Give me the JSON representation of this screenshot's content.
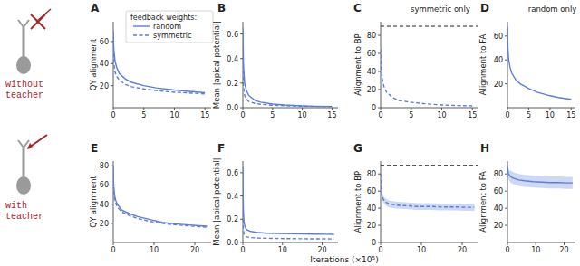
{
  "rows": [
    [
      "without",
      "teacher"
    ],
    [
      "with",
      "teacher"
    ]
  ],
  "xlabel": "Iterations (×10⁵)",
  "chart_data": [
    {
      "type": "line",
      "panel": "A",
      "ylabel": "QY alignment",
      "legend": "upper right",
      "legend_title": "feedback weights:",
      "x": [
        0,
        0.1,
        0.3,
        0.6,
        1,
        2,
        3,
        5,
        7,
        10,
        12,
        15
      ],
      "xlim": [
        0,
        16
      ],
      "xticks": [
        0,
        5,
        10,
        15
      ],
      "ylim": [
        0,
        78
      ],
      "yticks": [
        20,
        40,
        60
      ],
      "series": [
        {
          "name": "random",
          "color": "#5b7ddb",
          "line_style": "solid",
          "values": [
            70,
            52,
            42,
            36,
            31,
            26,
            23,
            20,
            18,
            16,
            15,
            13.5
          ]
        },
        {
          "name": "symmetric",
          "color": "#5b7ddb",
          "line_style": "dashed",
          "values": [
            60,
            40,
            32,
            28,
            25,
            21,
            19,
            17,
            15.5,
            14,
            13.5,
            12.5
          ]
        }
      ]
    },
    {
      "type": "line",
      "panel": "B",
      "ylabel": "Mean |apical potential|",
      "x": [
        0,
        0.1,
        0.3,
        0.6,
        1,
        2,
        3,
        5,
        7,
        10,
        12,
        15
      ],
      "xlim": [
        0,
        16
      ],
      "xticks": [
        0,
        5,
        10,
        15
      ],
      "ylim": [
        0,
        0.7
      ],
      "yticks": [
        {
          "value": 0,
          "label": "0.0"
        },
        {
          "value": 0.2,
          "label": "0.2"
        },
        {
          "value": 0.4,
          "label": "0.4"
        },
        {
          "value": 0.6,
          "label": "0.6"
        }
      ],
      "series": [
        {
          "name": "random",
          "color": "#5b7ddb",
          "line_style": "solid",
          "values": [
            0.65,
            0.35,
            0.2,
            0.14,
            0.1,
            0.06,
            0.045,
            0.03,
            0.022,
            0.015,
            0.012,
            0.01
          ]
        },
        {
          "name": "symmetric",
          "color": "#5b7ddb",
          "line_style": "dashed",
          "values": [
            0.35,
            0.18,
            0.1,
            0.07,
            0.05,
            0.035,
            0.028,
            0.02,
            0.016,
            0.012,
            0.01,
            0.008
          ]
        }
      ]
    },
    {
      "type": "line",
      "panel": "C",
      "title": "symmetric only",
      "ylabel": "Alignment to BP",
      "x": [
        0,
        0.1,
        0.3,
        0.6,
        1,
        2,
        3,
        5,
        7,
        10,
        12,
        15
      ],
      "xlim": [
        0,
        16
      ],
      "xticks": [
        0,
        5,
        10,
        15
      ],
      "ylim": [
        0,
        95
      ],
      "yticks": [
        0,
        20,
        40,
        60,
        80
      ],
      "reference_line": 90,
      "series": [
        {
          "name": "symmetric",
          "color": "#5b7ddb",
          "line_style": "dashed",
          "values": [
            65,
            45,
            30,
            22,
            17,
            11,
            8,
            6,
            4.5,
            3,
            2.5,
            2
          ]
        }
      ]
    },
    {
      "type": "line",
      "panel": "D",
      "title": "random only",
      "ylabel": "Alignment to FA",
      "x": [
        0,
        0.1,
        0.3,
        0.6,
        1,
        2,
        3,
        5,
        7,
        10,
        12,
        15
      ],
      "xlim": [
        0,
        16
      ],
      "xticks": [
        0,
        5,
        10,
        15
      ],
      "ylim": [
        0,
        72
      ],
      "yticks": [
        20,
        40,
        60
      ],
      "series": [
        {
          "name": "random",
          "color": "#5b7ddb",
          "line_style": "solid",
          "values": [
            68,
            50,
            40,
            34,
            29,
            23,
            20,
            16,
            13,
            10,
            8.5,
            7
          ]
        }
      ]
    },
    {
      "type": "line",
      "panel": "E",
      "ylabel": "QY alignment",
      "x": [
        0,
        0.1,
        0.3,
        0.6,
        1,
        2,
        4,
        6,
        9,
        12,
        15,
        18,
        21,
        23
      ],
      "xlim": [
        0,
        24
      ],
      "xticks": [
        0,
        10,
        20
      ],
      "ylim": [
        0,
        85
      ],
      "yticks": [
        20,
        40,
        60,
        80
      ],
      "series": [
        {
          "name": "random",
          "color": "#5b7ddb",
          "line_style": "solid",
          "values": [
            80,
            60,
            50,
            44,
            40,
            34,
            30,
            27,
            24,
            21,
            19.5,
            18.5,
            17.5,
            17
          ]
        },
        {
          "name": "symmetric",
          "color": "#5b7ddb",
          "line_style": "dashed",
          "values": [
            72,
            55,
            46,
            41,
            37,
            32,
            28,
            25,
            22,
            20,
            18.5,
            17.5,
            16.5,
            16
          ]
        }
      ]
    },
    {
      "type": "line",
      "panel": "F",
      "ylabel": "Mean |apical potential|",
      "x": [
        0,
        0.1,
        0.3,
        0.6,
        1,
        2,
        4,
        6,
        9,
        12,
        15,
        18,
        21,
        23
      ],
      "xlim": [
        0,
        24
      ],
      "xticks": [
        0,
        10,
        20
      ],
      "ylim": [
        0,
        0.7
      ],
      "yticks": [
        {
          "value": 0,
          "label": "0.0"
        },
        {
          "value": 0.2,
          "label": "0.2"
        },
        {
          "value": 0.4,
          "label": "0.4"
        },
        {
          "value": 0.6,
          "label": "0.6"
        }
      ],
      "series": [
        {
          "name": "random",
          "color": "#5b7ddb",
          "line_style": "solid",
          "values": [
            0.65,
            0.3,
            0.17,
            0.13,
            0.11,
            0.095,
            0.085,
            0.08,
            0.078,
            0.075,
            0.073,
            0.072,
            0.071,
            0.07
          ]
        },
        {
          "name": "symmetric",
          "color": "#5b7ddb",
          "line_style": "dashed",
          "values": [
            0.3,
            0.12,
            0.07,
            0.055,
            0.048,
            0.042,
            0.038,
            0.036,
            0.034,
            0.033,
            0.032,
            0.031,
            0.031,
            0.03
          ]
        }
      ]
    },
    {
      "type": "line",
      "panel": "G",
      "ylabel": "Alignment to BP",
      "x": [
        0,
        0.1,
        0.3,
        0.6,
        1,
        2,
        4,
        6,
        9,
        12,
        15,
        18,
        21,
        23
      ],
      "xlim": [
        0,
        24
      ],
      "xticks": [
        0,
        10,
        20
      ],
      "ylim": [
        0,
        95
      ],
      "yticks": [
        0,
        20,
        40,
        60,
        80
      ],
      "reference_line": 90,
      "series": [
        {
          "name": "symmetric",
          "color": "#5b7ddb",
          "line_style": "dashed",
          "values": [
            80,
            66,
            56,
            51,
            48,
            45,
            43.5,
            43,
            42,
            42,
            41.5,
            41.5,
            41,
            41
          ],
          "error": [
            4,
            4,
            4,
            4,
            4,
            4,
            4,
            4,
            4,
            4,
            4,
            4,
            4,
            4
          ]
        }
      ]
    },
    {
      "type": "line",
      "panel": "H",
      "ylabel": "Alignment to FA",
      "x": [
        0,
        0.1,
        0.3,
        0.6,
        1,
        2,
        4,
        6,
        9,
        12,
        15,
        18,
        21,
        23
      ],
      "xlim": [
        0,
        24
      ],
      "xticks": [
        0,
        10,
        20
      ],
      "ylim": [
        0,
        95
      ],
      "yticks": [
        20,
        40,
        60,
        80
      ],
      "series": [
        {
          "name": "random",
          "color": "#5b7ddb",
          "line_style": "solid",
          "values": [
            88,
            84,
            81,
            79,
            77,
            75,
            73,
            72,
            71,
            70.5,
            70,
            70,
            69.5,
            69.5
          ],
          "error": [
            5,
            5,
            6,
            6,
            7,
            7,
            7,
            7,
            7,
            7,
            7,
            7,
            7,
            7
          ]
        }
      ]
    }
  ]
}
